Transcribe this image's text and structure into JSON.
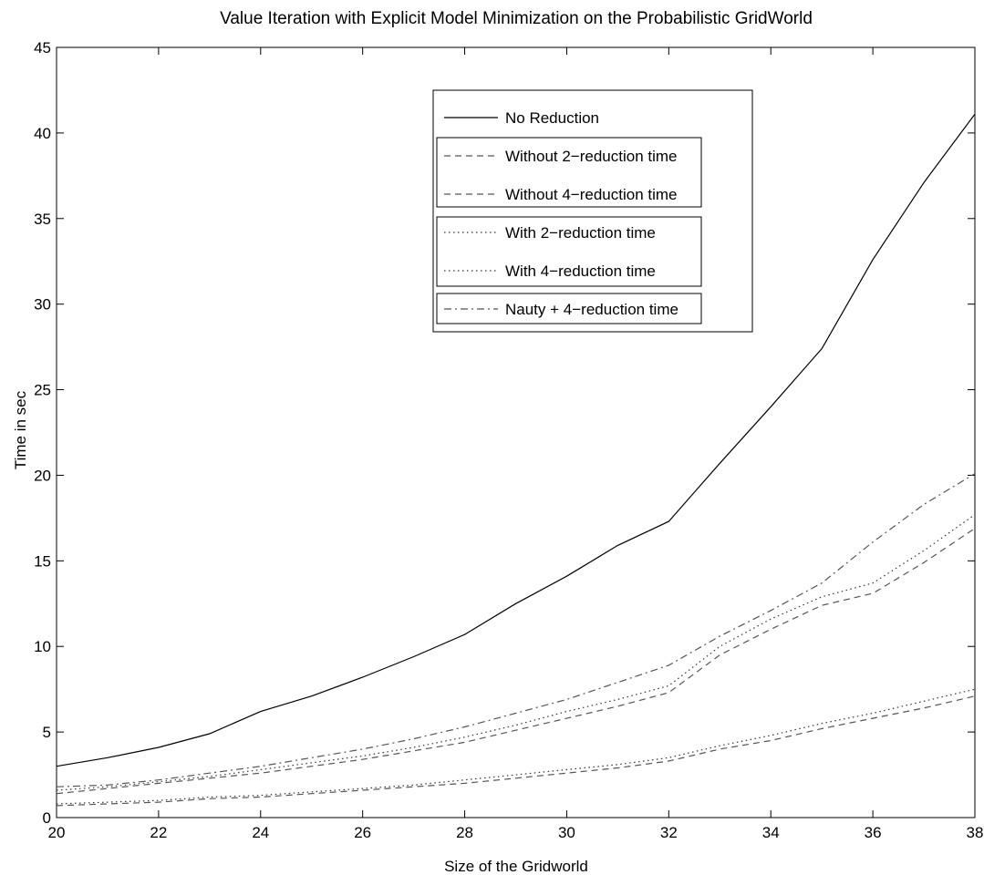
{
  "chart_data": {
    "type": "line",
    "title": "Value Iteration with Explicit Model Minimization on the Probabilistic GridWorld",
    "xlabel": "Size of the Gridworld",
    "ylabel": "Time in sec",
    "xlim": [
      20,
      38
    ],
    "ylim": [
      0,
      45
    ],
    "xticks": [
      20,
      22,
      24,
      26,
      28,
      30,
      32,
      34,
      36,
      38
    ],
    "yticks": [
      0,
      5,
      10,
      15,
      20,
      25,
      30,
      35,
      40,
      45
    ],
    "grid": false,
    "legend_position": "top-center",
    "x": [
      20,
      21,
      22,
      23,
      24,
      25,
      26,
      27,
      28,
      29,
      30,
      31,
      32,
      33,
      34,
      35,
      36,
      37,
      38
    ],
    "series": [
      {
        "name": "No Reduction",
        "style": "solid",
        "color": "#000000",
        "values": [
          3.0,
          3.5,
          4.1,
          4.9,
          6.2,
          7.1,
          8.2,
          9.4,
          10.7,
          12.5,
          14.1,
          15.9,
          17.3,
          20.7,
          24.0,
          27.4,
          32.6,
          37.1,
          41.1
        ]
      },
      {
        "name": "Without 2−reduction time",
        "style": "dashed",
        "color": "#555555",
        "values": [
          0.7,
          0.8,
          0.9,
          1.1,
          1.2,
          1.4,
          1.6,
          1.8,
          2.0,
          2.3,
          2.6,
          2.9,
          3.3,
          4.0,
          4.5,
          5.2,
          5.8,
          6.4,
          7.1
        ]
      },
      {
        "name": "Without 4−reduction time",
        "style": "dashed",
        "color": "#555555",
        "values": [
          1.4,
          1.7,
          2.0,
          2.3,
          2.6,
          3.0,
          3.4,
          3.9,
          4.4,
          5.1,
          5.8,
          6.5,
          7.3,
          9.5,
          11.0,
          12.4,
          13.1,
          14.9,
          16.9
        ]
      },
      {
        "name": "With 2−reduction time",
        "style": "dotted",
        "color": "#333333",
        "values": [
          0.8,
          0.9,
          1.0,
          1.2,
          1.3,
          1.5,
          1.7,
          1.9,
          2.2,
          2.5,
          2.8,
          3.1,
          3.5,
          4.2,
          4.8,
          5.5,
          6.1,
          6.8,
          7.5
        ]
      },
      {
        "name": "With 4−reduction time",
        "style": "dotted",
        "color": "#333333",
        "values": [
          1.6,
          1.8,
          2.1,
          2.4,
          2.8,
          3.2,
          3.6,
          4.1,
          4.7,
          5.4,
          6.2,
          6.9,
          7.7,
          10.0,
          11.6,
          12.9,
          13.7,
          15.6,
          17.7
        ]
      },
      {
        "name": "Nauty + 4−reduction time",
        "style": "dashdot",
        "color": "#555555",
        "values": [
          1.8,
          1.9,
          2.2,
          2.6,
          3.0,
          3.5,
          4.0,
          4.6,
          5.3,
          6.1,
          6.9,
          7.9,
          8.9,
          10.6,
          12.1,
          13.7,
          16.1,
          18.3,
          20.1
        ]
      }
    ]
  }
}
